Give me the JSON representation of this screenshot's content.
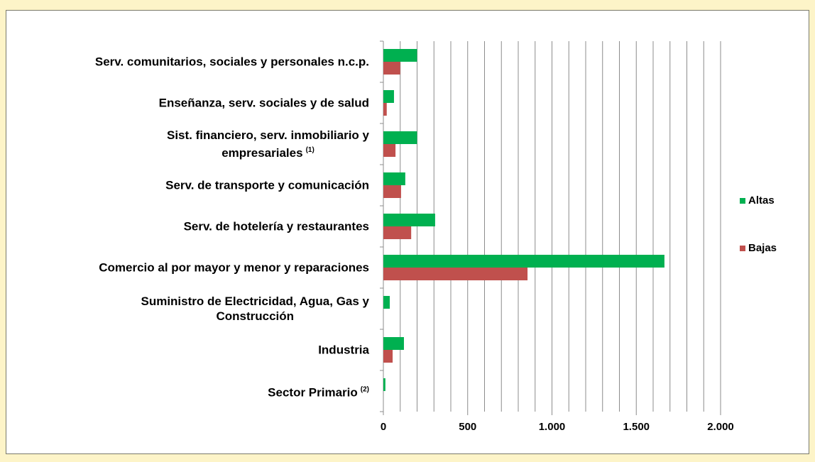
{
  "chart_data": {
    "type": "barh",
    "categories": [
      "Serv. comunitarios, sociales y personales n.c.p.",
      "Enseñanza, serv. sociales y de salud",
      "Sist. financiero, serv. inmobiliario y\nempresariales",
      "Serv. de transporte y comunicación",
      "Serv. de hotelería y restaurantes",
      "Comercio al por mayor y menor y reparaciones",
      "Suministro de Electricidad, Agua, Gas y\nConstrucción",
      "Industria",
      "Sector Primario"
    ],
    "category_notes": [
      null,
      null,
      "(1)",
      null,
      null,
      null,
      null,
      null,
      "(2)"
    ],
    "series": [
      {
        "name": "Altas",
        "color": "#00b050",
        "values": [
          200,
          63,
          200,
          130,
          307,
          1667,
          38,
          122,
          12
        ]
      },
      {
        "name": "Bajas",
        "color": "#c0504d",
        "values": [
          100,
          20,
          72,
          105,
          165,
          855,
          0,
          55,
          0
        ]
      }
    ],
    "xlim": [
      0,
      2000
    ],
    "xticks": [
      0,
      500,
      {
        "value": 1000,
        "label": "1.000"
      },
      {
        "value": 1500,
        "label": "1.500"
      },
      {
        "value": 2000,
        "label": "2.000"
      }
    ],
    "grid": true,
    "grid_step": 100,
    "legend": "right"
  }
}
